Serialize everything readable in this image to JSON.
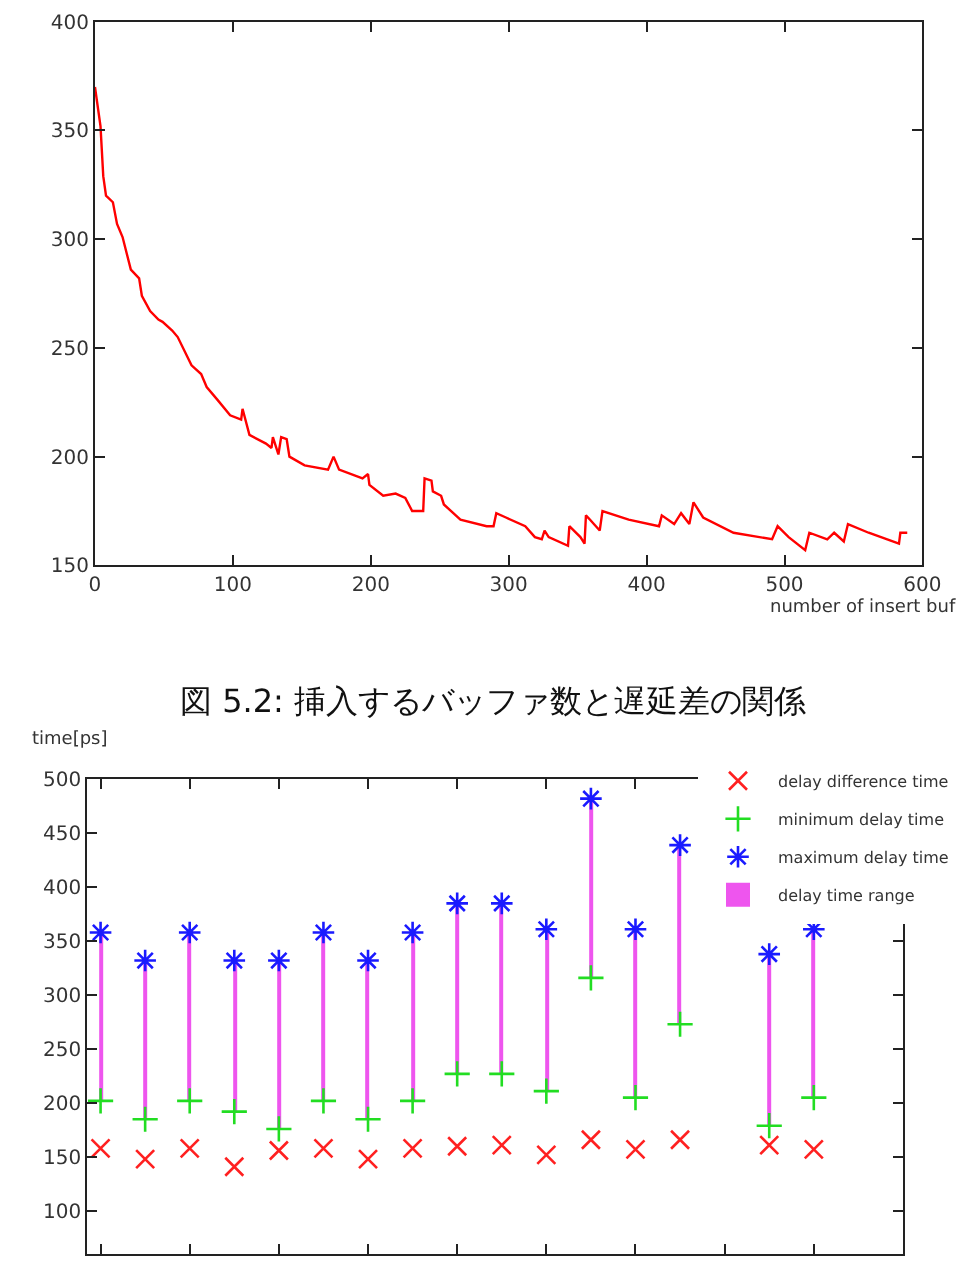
{
  "chart_data": [
    {
      "type": "line",
      "xlabel": "number of insert buf",
      "xlim": [
        0,
        600
      ],
      "xticks": [
        0,
        100,
        200,
        300,
        400,
        500,
        600
      ],
      "ylim": [
        150,
        400
      ],
      "yticks": [
        150,
        200,
        250,
        300,
        350,
        400
      ],
      "legend": false,
      "marker": "none",
      "line_style": "solid",
      "annotations": [
        "図 5.2: 挿入するバッファ数と遅延差の関係"
      ],
      "series": [
        {
          "color": "#ff0000",
          "x": [
            0,
            4,
            6,
            8,
            13,
            16,
            20,
            26,
            32,
            34,
            40,
            46,
            49,
            56,
            60,
            70,
            77,
            81,
            89,
            98,
            106,
            107,
            112,
            124,
            128,
            129,
            133,
            135,
            139,
            141,
            152,
            169,
            173,
            177,
            194,
            198,
            199,
            209,
            218,
            225,
            230,
            238,
            239,
            244,
            245,
            251,
            253,
            265,
            284,
            289,
            291,
            298,
            312,
            319,
            324,
            326,
            329,
            343,
            344,
            352,
            355,
            356,
            359,
            366,
            368,
            387,
            409,
            411,
            420,
            425,
            431,
            434,
            441,
            463,
            491,
            495,
            503,
            515,
            518,
            531,
            536,
            543,
            546,
            561,
            583,
            584,
            589
          ],
          "values": [
            370,
            352,
            329,
            320,
            317,
            307,
            301,
            286,
            282,
            274,
            267,
            263,
            262,
            258,
            255,
            242,
            238,
            232,
            226,
            219,
            217,
            222,
            210,
            206,
            204,
            209,
            201,
            209,
            208,
            200,
            196,
            194,
            200,
            194,
            190,
            192,
            187,
            182,
            183,
            181,
            175,
            175,
            190,
            189,
            184,
            182,
            178,
            171,
            168,
            168,
            174,
            172,
            168,
            163,
            162,
            166,
            163,
            159,
            168,
            163,
            160,
            173,
            171,
            166,
            175,
            171,
            168,
            173,
            169,
            174,
            169,
            179,
            172,
            165,
            162,
            168,
            163,
            157,
            165,
            162,
            165,
            161,
            169,
            165,
            160,
            165,
            165
          ]
        }
      ]
    },
    {
      "type": "scatter",
      "ylabel": "time[ps]",
      "categories": [
        null,
        null,
        null,
        null,
        null,
        null,
        null,
        null,
        null,
        null,
        null,
        null,
        null,
        null,
        null,
        null,
        null,
        null,
        null
      ],
      "ylim": [
        60,
        500
      ],
      "yticks": [
        100,
        150,
        200,
        250,
        300,
        350,
        400,
        450,
        500
      ],
      "tick_labels": "y",
      "legend": "top right",
      "series": [
        {
          "name": "delay difference time",
          "type": "scatter",
          "marker": "cross",
          "color": "#ff2020",
          "values": [
            158,
            148,
            158,
            141,
            156,
            158,
            148,
            158,
            160,
            161,
            152,
            166,
            157,
            166,
            null,
            161,
            157,
            null,
            null
          ]
        },
        {
          "name": "minimum delay time",
          "type": "scatter",
          "marker": "plus",
          "color": "#22dd22",
          "values": [
            202,
            185,
            202,
            192,
            176,
            202,
            185,
            202,
            227,
            227,
            211,
            316,
            205,
            273,
            null,
            179,
            205,
            null,
            null
          ]
        },
        {
          "name": "maximum delay time",
          "type": "scatter",
          "color": "#1a1aff",
          "values": [
            358,
            332,
            358,
            332,
            332,
            358,
            332,
            358,
            385,
            385,
            361,
            482,
            361,
            439,
            null,
            338,
            361,
            null,
            null
          ]
        },
        {
          "name": "delay time range",
          "type": "bar",
          "color": "#ee55ee",
          "base": [
            202,
            185,
            202,
            192,
            176,
            202,
            185,
            202,
            227,
            227,
            211,
            316,
            205,
            273,
            null,
            179,
            205,
            null,
            null
          ],
          "values": [
            156,
            147,
            156,
            140,
            156,
            156,
            147,
            156,
            158,
            158,
            150,
            166,
            156,
            166,
            null,
            159,
            156,
            null,
            null
          ]
        }
      ]
    }
  ]
}
